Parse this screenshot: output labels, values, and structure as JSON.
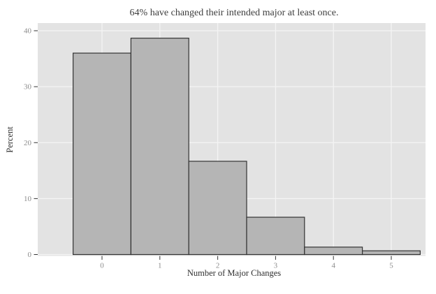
{
  "chart_data": {
    "type": "bar",
    "subtype": "histogram",
    "title": "64% have changed their intended major at least once.",
    "xlabel": "Number of Major Changes",
    "ylabel": "Percent",
    "categories": [
      "0",
      "1",
      "2",
      "3",
      "4",
      "5"
    ],
    "values": [
      36,
      38.67,
      16.67,
      6.67,
      1.33,
      0.67
    ],
    "y_ticks": [
      0,
      10,
      20,
      30,
      40
    ],
    "y_tick_labels": [
      "0",
      "10",
      "20",
      "30",
      "40"
    ],
    "ylim": [
      0,
      41.4
    ],
    "bar_width_units": 1,
    "grid": true,
    "legend": false,
    "theme": "ggplot-gray"
  },
  "colors": {
    "background": "#ffffff",
    "panel_bg": "#e3e3e3",
    "grid_line": "#f4f4f4",
    "bar_fill": "#b5b5b5",
    "bar_stroke": "#333333",
    "tick_mark": "#333333",
    "tick_label": "#8c8c8c",
    "title_text": "#3d3d3d",
    "axis_title_text": "#2f2f2f"
  }
}
